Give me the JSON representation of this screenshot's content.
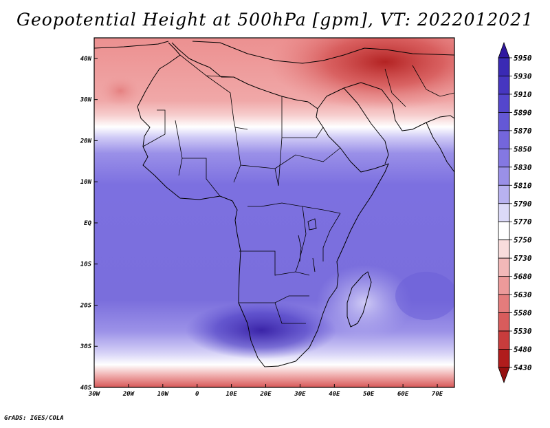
{
  "title": "Geopotential Height at 500hPa [gpm], VT: 2022012021",
  "credit": "GrADS: IGES/COLA",
  "map": {
    "variable": "Geopotential Height at 500hPa",
    "units": "gpm",
    "valid_time": "2022012021",
    "lon_range": [
      -30,
      75
    ],
    "lat_range": [
      -40,
      45
    ],
    "lat_ticks": [
      {
        "value": 40,
        "label": "40N"
      },
      {
        "value": 30,
        "label": "30N"
      },
      {
        "value": 20,
        "label": "20N"
      },
      {
        "value": 10,
        "label": "10N"
      },
      {
        "value": 0,
        "label": "EQ"
      },
      {
        "value": -10,
        "label": "10S"
      },
      {
        "value": -20,
        "label": "20S"
      },
      {
        "value": -30,
        "label": "30S"
      },
      {
        "value": -40,
        "label": "40S"
      }
    ],
    "lon_ticks": [
      {
        "value": -30,
        "label": "30W"
      },
      {
        "value": -20,
        "label": "20W"
      },
      {
        "value": -10,
        "label": "10W"
      },
      {
        "value": 0,
        "label": "0"
      },
      {
        "value": 10,
        "label": "10E"
      },
      {
        "value": 20,
        "label": "20E"
      },
      {
        "value": 30,
        "label": "30E"
      },
      {
        "value": 40,
        "label": "40E"
      },
      {
        "value": 50,
        "label": "50E"
      },
      {
        "value": 60,
        "label": "60E"
      },
      {
        "value": 70,
        "label": "70E"
      }
    ]
  },
  "colorbar": {
    "levels": [
      "5950",
      "5930",
      "5910",
      "5890",
      "5870",
      "5850",
      "5830",
      "5810",
      "5790",
      "5770",
      "5750",
      "5730",
      "5680",
      "5630",
      "5580",
      "5530",
      "5480",
      "5430"
    ],
    "colors": [
      "#3018a0",
      "#3a2ab4",
      "#4636c0",
      "#5446cc",
      "#6458d6",
      "#7466dc",
      "#8478e2",
      "#9a90e8",
      "#b8b2f0",
      "#dcdaf8",
      "#ffffff",
      "#f8dcdc",
      "#f2b8b8",
      "#ec9a9a",
      "#e47c7c",
      "#d85c5c",
      "#c83c3c",
      "#b01c1c",
      "#961010"
    ]
  },
  "colors": {
    "ocean_mid": "#8478e2",
    "land_outline": "#000000"
  }
}
